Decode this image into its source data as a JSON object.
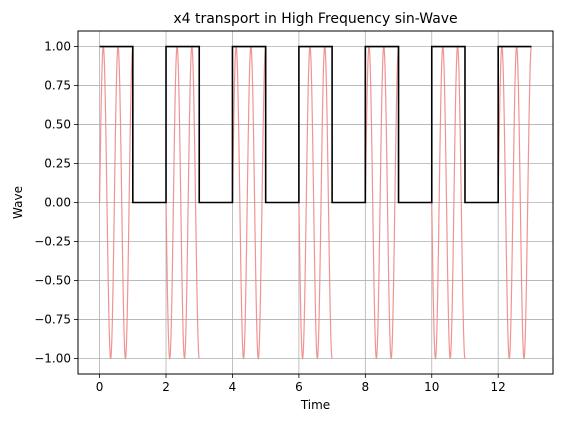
{
  "chart_data": {
    "type": "line",
    "title": "x4 transport in High Frequency sin-Wave",
    "xlabel": "Time",
    "ylabel": "Wave",
    "xlim": [
      -0.65,
      13.65
    ],
    "ylim": [
      -1.1,
      1.1
    ],
    "x_ticks": [
      0,
      2,
      4,
      6,
      8,
      10,
      12
    ],
    "y_ticks": [
      1.0,
      0.75,
      0.5,
      0.25,
      0.0,
      -0.25,
      -0.5,
      -0.75,
      -1.0
    ],
    "x_tick_labels": [
      "0",
      "2",
      "4",
      "6",
      "8",
      "10",
      "12"
    ],
    "y_tick_labels": [
      "1.00",
      "0.75",
      "0.50",
      "0.25",
      "0.00",
      "−0.25",
      "−0.50",
      "−0.75",
      "−1.00"
    ],
    "grid": true,
    "legend": "none",
    "series": [
      {
        "color": "#f08080",
        "x_range": [
          0,
          13
        ],
        "periods_per_unit": 2.25,
        "gate_segments": [
          [
            0,
            1
          ],
          [
            2,
            3
          ],
          [
            4,
            5
          ],
          [
            6,
            7
          ],
          [
            8,
            9
          ],
          [
            10,
            11
          ],
          [
            12,
            13
          ]
        ],
        "between_segments": "abrupt"
      },
      {
        "color": "#000000",
        "x": [
          0,
          1,
          1,
          2,
          2,
          3,
          3,
          4,
          4,
          5,
          5,
          6,
          6,
          7,
          7,
          8,
          8,
          9,
          9,
          10,
          10,
          11,
          11,
          12,
          12,
          13
        ],
        "y": [
          1,
          1,
          0,
          0,
          1,
          1,
          0,
          0,
          1,
          1,
          0,
          0,
          1,
          1,
          0,
          0,
          1,
          1,
          0,
          0,
          1,
          1,
          0,
          0,
          1,
          1
        ]
      }
    ]
  }
}
